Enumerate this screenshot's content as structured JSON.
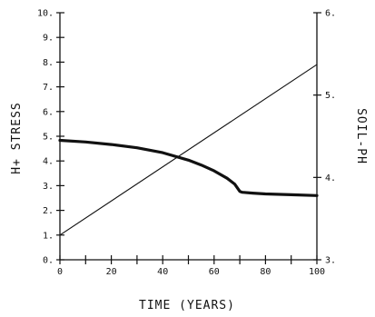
{
  "chart_data": {
    "type": "line",
    "title": "",
    "xlabel": "TIME (YEARS)",
    "ylabel_left": "H+ STRESS",
    "ylabel_right": "SOIL-PH",
    "xlim": [
      0,
      100
    ],
    "ylim_left": [
      0,
      10
    ],
    "ylim_right": [
      3,
      6
    ],
    "x_ticks": [
      0,
      20,
      40,
      60,
      80,
      100
    ],
    "x_tick_labels": [
      "0",
      "20",
      "40",
      "60",
      "80",
      "100"
    ],
    "y_left_ticks": [
      0,
      1,
      2,
      3,
      4,
      5,
      6,
      7,
      8,
      9,
      10
    ],
    "y_left_tick_labels": [
      "0.",
      "1.",
      "2.",
      "3.",
      "4.",
      "5.",
      "6.",
      "7.",
      "8.",
      "9.",
      "10."
    ],
    "y_right_ticks": [
      3,
      4,
      5,
      6
    ],
    "y_right_tick_labels": [
      "3.",
      "4.",
      "5.",
      "6."
    ],
    "grid": false,
    "series": [
      {
        "axis": "left",
        "style": "thin",
        "x": [
          0,
          100
        ],
        "y": [
          1.0,
          7.9
        ]
      },
      {
        "axis": "right",
        "style": "thick",
        "x": [
          0,
          10,
          20,
          30,
          40,
          50,
          55,
          60,
          65,
          68,
          70,
          71,
          75,
          80,
          90,
          100
        ],
        "y": [
          4.45,
          4.43,
          4.4,
          4.36,
          4.3,
          4.21,
          4.15,
          4.08,
          3.99,
          3.92,
          3.83,
          3.82,
          3.81,
          3.8,
          3.79,
          3.78
        ]
      }
    ]
  }
}
